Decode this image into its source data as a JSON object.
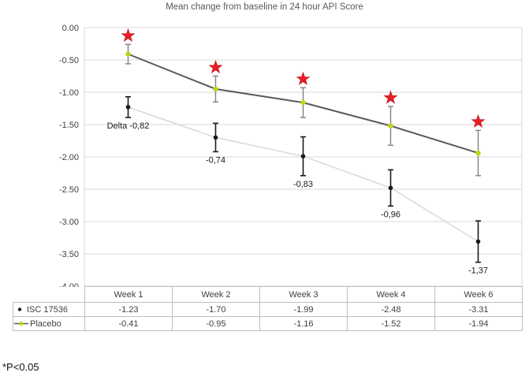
{
  "footnote": "*P<0.05",
  "colors": {
    "grid": "#d9d9d9",
    "axis_text": "#404040",
    "title_text": "#595959",
    "star_red": "#ec1c24",
    "isc_line": "#d9d9d9",
    "isc_marker": "#1a1a1a",
    "isc_error": "#1a1a1a",
    "placebo_line": "#595959",
    "placebo_marker": "#c3d214",
    "placebo_error": "#808080",
    "table_border": "#bfbfbf",
    "delta_text": "#1a1a1a"
  },
  "chart_data": {
    "type": "line",
    "title": "Mean change from baseline in 24 hour API Score",
    "categories": [
      "Week 1",
      "Week 2",
      "Week 3",
      "Week 4",
      "Week 6"
    ],
    "series": [
      {
        "name": "ISC 17536",
        "values": [
          -1.23,
          -1.7,
          -1.99,
          -2.48,
          -3.31
        ],
        "errors": [
          0.16,
          0.22,
          0.3,
          0.28,
          0.32
        ],
        "marker": "black-dot",
        "significant": false
      },
      {
        "name": "Placebo",
        "values": [
          -0.41,
          -0.95,
          -1.16,
          -1.52,
          -1.94
        ],
        "errors": [
          0.15,
          0.2,
          0.23,
          0.3,
          0.35
        ],
        "marker": "yellow-green-dot-on-line",
        "significant": true
      }
    ],
    "delta_labels": [
      "Delta -0,82",
      "-0,74",
      "-0,83",
      "-0,96",
      "-1,37"
    ],
    "significance_marker": "red-star-above-placebo-points",
    "ylim": [
      0,
      -4
    ],
    "ytick_labels": [
      "0.00",
      "-0.50",
      "-1.00",
      "-1.50",
      "-2.00",
      "-2.50",
      "-3.00",
      "-3.50",
      "-4.00"
    ],
    "xlabel": "",
    "ylabel": "",
    "grid": true,
    "legend_position": "left column of data table below chart"
  }
}
